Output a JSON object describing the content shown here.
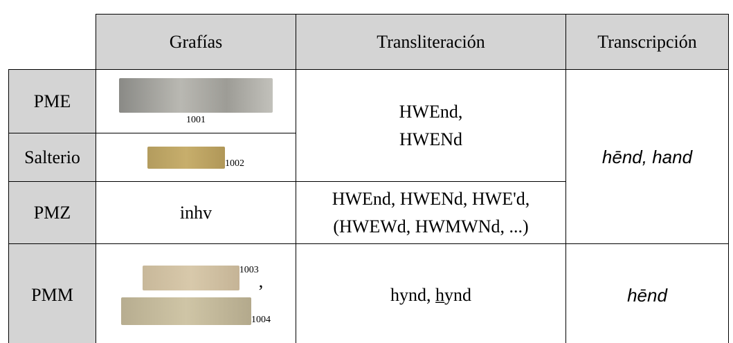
{
  "table": {
    "header": [
      "Grafías",
      "Transliteración",
      "Transcripción"
    ],
    "rows": [
      {
        "label": "PME",
        "graphy_refs": [
          "1001"
        ]
      },
      {
        "label": "Salterio",
        "graphy_refs": [
          "1002"
        ]
      },
      {
        "label": "PMZ",
        "graphy_text": "inhv"
      },
      {
        "label": "PMM",
        "graphy_refs": [
          "1003",
          "1004"
        ],
        "graphy_sep": ","
      }
    ],
    "transliteration": {
      "pme_salterio": [
        "HWEnd,",
        "HWENd"
      ],
      "pmz": [
        "HWEnd, HWENd, HWE'd,",
        "(HWEWd, HWMWNd, ...)"
      ],
      "pmm": "hynd, h̲ynd"
    },
    "transcription": {
      "pme_pmz": "hēnd, hand",
      "pmm": "hēnd"
    }
  }
}
